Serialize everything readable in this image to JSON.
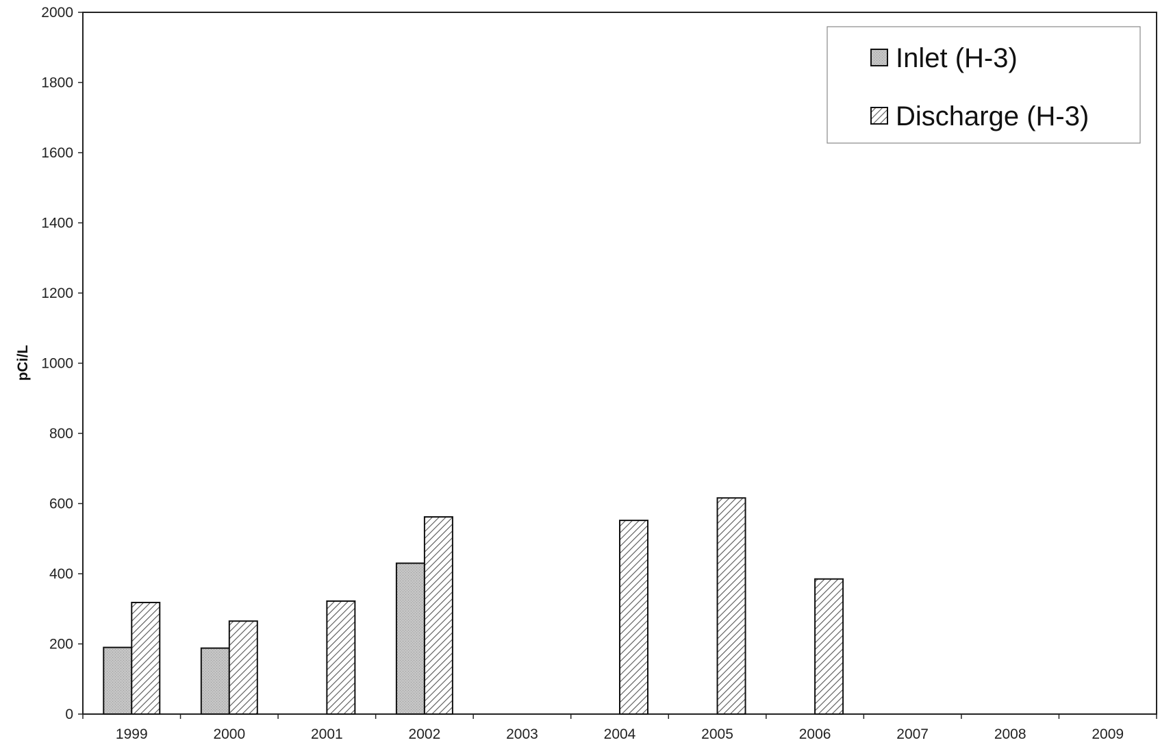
{
  "chart_data": {
    "type": "bar",
    "ylabel": "pCi/L",
    "xlabel": "",
    "ylim": [
      0,
      2000
    ],
    "yticks": [
      0,
      200,
      400,
      600,
      800,
      1000,
      1200,
      1400,
      1600,
      1800,
      2000
    ],
    "categories": [
      "1999",
      "2000",
      "2001",
      "2002",
      "2003",
      "2004",
      "2005",
      "2006",
      "2007",
      "2008",
      "2009"
    ],
    "series": [
      {
        "name": "Inlet (H-3)",
        "values": [
          190,
          188,
          null,
          430,
          null,
          null,
          null,
          null,
          null,
          null,
          null
        ],
        "color": "#c0c0c0",
        "pattern": "solid"
      },
      {
        "name": "Discharge (H-3)",
        "values": [
          318,
          265,
          322,
          562,
          null,
          552,
          616,
          385,
          null,
          null,
          null
        ],
        "color": "#ffffff",
        "pattern": "diagonal-hatch"
      }
    ],
    "legend": {
      "position": "top-right"
    },
    "grid": false
  }
}
